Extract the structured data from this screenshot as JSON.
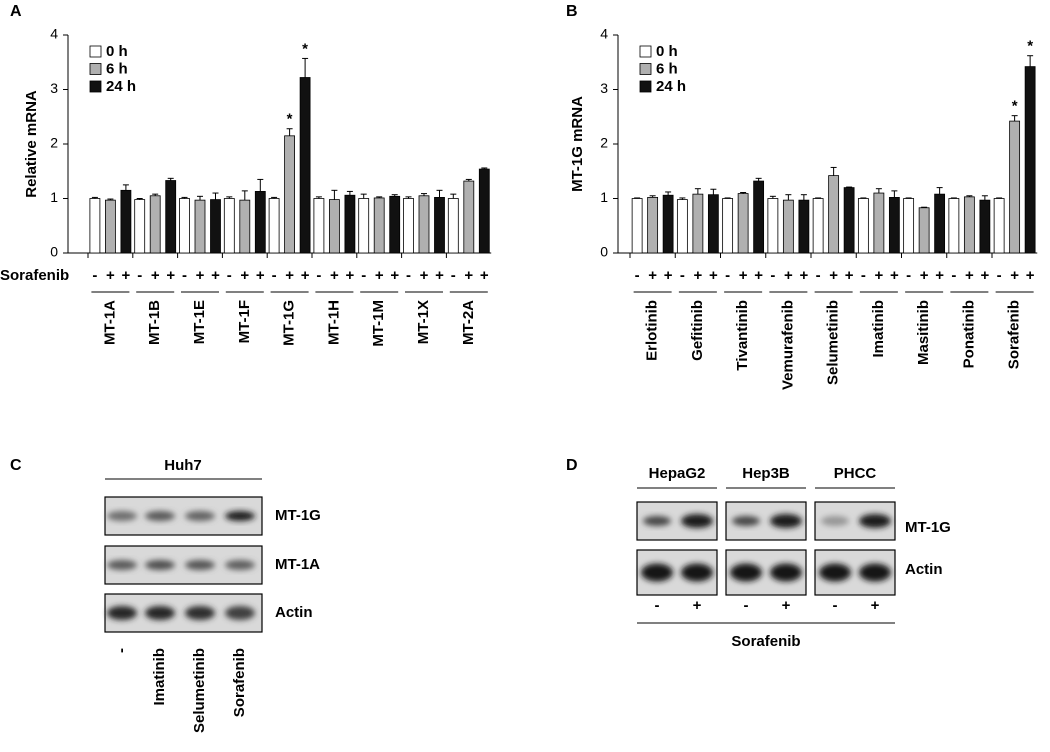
{
  "chart_data": [
    {
      "type": "bar",
      "panel": "A",
      "ylabel": "Relative mRNA",
      "categories": [
        "MT-1A",
        "MT-1B",
        "MT-1E",
        "MT-1F",
        "MT-1G",
        "MT-1H",
        "MT-1M",
        "MT-1X",
        "MT-2A"
      ],
      "series": [
        {
          "name": "0 h",
          "color": "#ffffff",
          "values": [
            1.0,
            0.98,
            1.0,
            1.0,
            1.0,
            1.0,
            1.0,
            1.0,
            1.0
          ],
          "errors": [
            0.02,
            0.02,
            0.02,
            0.03,
            0.02,
            0.03,
            0.08,
            0.03,
            0.08
          ],
          "significance": [
            null,
            null,
            null,
            null,
            null,
            null,
            null,
            null,
            null
          ]
        },
        {
          "name": "6 h",
          "color": "#b0b0b0",
          "values": [
            0.97,
            1.05,
            0.97,
            0.97,
            2.15,
            0.98,
            1.01,
            1.05,
            1.32
          ],
          "errors": [
            0.02,
            0.03,
            0.07,
            0.17,
            0.13,
            0.17,
            0.02,
            0.04,
            0.03
          ],
          "significance": [
            null,
            null,
            null,
            null,
            "*",
            null,
            null,
            null,
            null
          ]
        },
        {
          "name": "24 h",
          "color": "#111111",
          "values": [
            1.15,
            1.33,
            0.98,
            1.13,
            3.22,
            1.06,
            1.04,
            1.02,
            1.54
          ],
          "errors": [
            0.1,
            0.04,
            0.12,
            0.22,
            0.35,
            0.07,
            0.03,
            0.13,
            0.02
          ],
          "significance": [
            null,
            null,
            null,
            null,
            "*",
            null,
            null,
            null,
            null
          ]
        }
      ],
      "treatment": {
        "label": "Sorafenib",
        "signs": [
          "-",
          "+",
          "+"
        ]
      },
      "ylim": [
        0,
        4
      ],
      "yticks": [
        0,
        1,
        2,
        3,
        4
      ],
      "grid": false,
      "legend": "top-left"
    },
    {
      "type": "bar",
      "panel": "B",
      "ylabel": "MT-1G mRNA",
      "categories": [
        "Erlotinib",
        "Gefitinib",
        "Tivantinib",
        "Vemurafenib",
        "Selumetinib",
        "Imatinib",
        "Masitinib",
        "Ponatinib",
        "Sorafenib"
      ],
      "series": [
        {
          "name": "0 h",
          "color": "#ffffff",
          "values": [
            1.0,
            0.98,
            1.0,
            1.0,
            1.0,
            1.0,
            1.0,
            1.0,
            1.0
          ],
          "errors": [
            0.01,
            0.03,
            0.01,
            0.04,
            0.01,
            0.01,
            0.01,
            0.01,
            0.01
          ],
          "significance": [
            null,
            null,
            null,
            null,
            null,
            null,
            null,
            null,
            null
          ]
        },
        {
          "name": "6 h",
          "color": "#b0b0b0",
          "values": [
            1.02,
            1.08,
            1.09,
            0.97,
            1.42,
            1.1,
            0.83,
            1.03,
            2.42
          ],
          "errors": [
            0.03,
            0.1,
            0.02,
            0.1,
            0.15,
            0.08,
            0.01,
            0.02,
            0.1
          ],
          "significance": [
            null,
            null,
            null,
            null,
            null,
            null,
            null,
            null,
            "*"
          ]
        },
        {
          "name": "24 h",
          "color": "#111111",
          "values": [
            1.06,
            1.07,
            1.32,
            0.97,
            1.2,
            1.02,
            1.08,
            0.97,
            3.42
          ],
          "errors": [
            0.06,
            0.1,
            0.05,
            0.1,
            0.01,
            0.12,
            0.12,
            0.08,
            0.2
          ],
          "significance": [
            null,
            null,
            null,
            null,
            null,
            null,
            null,
            null,
            "*"
          ]
        }
      ],
      "treatment": {
        "signs": [
          "-",
          "+",
          "+"
        ]
      },
      "ylim": [
        0,
        4
      ],
      "yticks": [
        0,
        1,
        2,
        3,
        4
      ],
      "grid": false,
      "legend": "top-left"
    }
  ],
  "panel_c": {
    "label": "C",
    "cell_line": "Huh7",
    "rows": [
      "MT-1G",
      "MT-1A",
      "Actin"
    ],
    "lanes": [
      "-",
      "Imatinib",
      "Selumetinib",
      "Sorafenib"
    ]
  },
  "panel_d": {
    "label": "D",
    "cell_lines": [
      "HepaG2",
      "Hep3B",
      "PHCC"
    ],
    "rows": [
      "MT-1G",
      "Actin"
    ],
    "lanes": [
      "-",
      "+"
    ],
    "treatment": "Sorafenib"
  }
}
